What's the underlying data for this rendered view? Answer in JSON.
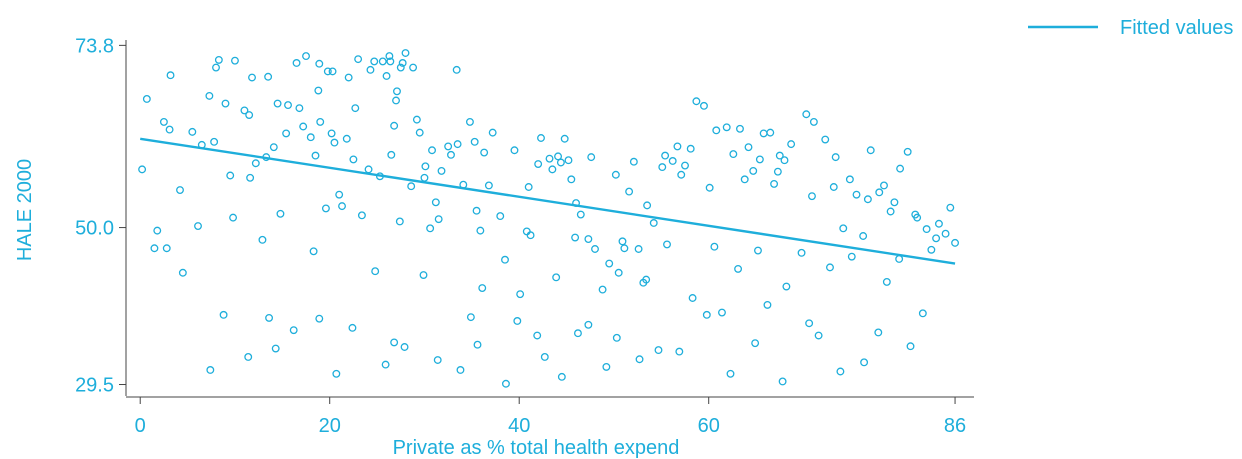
{
  "chart_data": {
    "type": "scatter",
    "xlabel": "Private as % total health expend",
    "ylabel": "HALE 2000",
    "xlim": [
      -1.5,
      88
    ],
    "ylim": [
      28,
      74.5
    ],
    "x_ticks": [
      {
        "value": 0,
        "label": "0"
      },
      {
        "value": 20,
        "label": "20"
      },
      {
        "value": 40,
        "label": "40"
      },
      {
        "value": 60,
        "label": "60"
      },
      {
        "value": 86,
        "label": "86"
      }
    ],
    "y_ticks": [
      {
        "value": 73.8,
        "label": "73.8"
      },
      {
        "value": 50.0,
        "label": "50.0"
      },
      {
        "value": 29.5,
        "label": "29.5"
      }
    ],
    "grid": false,
    "legend_position": "top-right",
    "colors": {
      "accent": "#1eaedb"
    },
    "series": [
      {
        "kind": "scatter",
        "points": [
          [
            0.2,
            57.6
          ],
          [
            0.7,
            66.8
          ],
          [
            1.8,
            49.6
          ],
          [
            2.8,
            47.3
          ],
          [
            3.2,
            69.9
          ],
          [
            3.1,
            62.8
          ],
          [
            7.3,
            67.2
          ],
          [
            7.8,
            61.2
          ],
          [
            8,
            70.9
          ],
          [
            8.3,
            71.9
          ],
          [
            9,
            66.2
          ],
          [
            9.5,
            56.8
          ],
          [
            10,
            71.8
          ],
          [
            11,
            65.3
          ],
          [
            11.5,
            64.7
          ],
          [
            11.6,
            56.5
          ],
          [
            11.8,
            69.6
          ],
          [
            13.3,
            59.2
          ],
          [
            13.5,
            69.7
          ],
          [
            14.5,
            66.2
          ],
          [
            15.4,
            62.3
          ],
          [
            15.6,
            66
          ],
          [
            16.5,
            71.5
          ],
          [
            16.8,
            65.6
          ],
          [
            17.5,
            72.4
          ],
          [
            18,
            61.8
          ],
          [
            18.5,
            59.4
          ],
          [
            18.8,
            67.9
          ],
          [
            18.9,
            71.4
          ],
          [
            19,
            63.8
          ],
          [
            19.8,
            70.4
          ],
          [
            20.2,
            62.3
          ],
          [
            20.3,
            70.4
          ],
          [
            20.5,
            61.1
          ],
          [
            21,
            54.3
          ],
          [
            21.3,
            52.8
          ],
          [
            21.8,
            61.6
          ],
          [
            22,
            69.6
          ],
          [
            22.7,
            65.6
          ],
          [
            23,
            72
          ],
          [
            24.1,
            57.6
          ],
          [
            24.3,
            70.6
          ],
          [
            24.7,
            71.7
          ],
          [
            25.6,
            71.7
          ],
          [
            26,
            69.8
          ],
          [
            26.3,
            72.4
          ],
          [
            26.4,
            71.7
          ],
          [
            26.5,
            59.5
          ],
          [
            26.8,
            63.3
          ],
          [
            27,
            66.6
          ],
          [
            27.1,
            67.8
          ],
          [
            27.5,
            70.9
          ],
          [
            27.7,
            71.5
          ],
          [
            28,
            72.8
          ],
          [
            28.8,
            70.9
          ],
          [
            29.2,
            64.1
          ],
          [
            29.5,
            62.4
          ],
          [
            30,
            56.5
          ],
          [
            30.1,
            58
          ],
          [
            30.8,
            60.1
          ],
          [
            31.2,
            53.3
          ],
          [
            31.5,
            51.1
          ],
          [
            32.5,
            60.6
          ],
          [
            32.8,
            59.5
          ],
          [
            33.4,
            70.6
          ],
          [
            33.5,
            60.9
          ],
          [
            34.8,
            63.8
          ],
          [
            35.3,
            61.2
          ],
          [
            35.5,
            52.2
          ],
          [
            36.3,
            59.8
          ],
          [
            36.8,
            55.5
          ],
          [
            38,
            51.5
          ],
          [
            38.5,
            45.8
          ],
          [
            40.8,
            49.5
          ],
          [
            41,
            55.3
          ],
          [
            42,
            58.3
          ],
          [
            42.3,
            61.7
          ],
          [
            43.2,
            59
          ],
          [
            44.1,
            59.3
          ],
          [
            44.4,
            58.5
          ],
          [
            44.8,
            61.6
          ],
          [
            45.2,
            58.8
          ],
          [
            45.5,
            56.3
          ],
          [
            46,
            53.2
          ],
          [
            46.5,
            51.7
          ],
          [
            47.3,
            48.5
          ],
          [
            48,
            47.2
          ],
          [
            49.5,
            45.3
          ],
          [
            50.5,
            44.1
          ],
          [
            51.1,
            47.3
          ],
          [
            51.6,
            54.7
          ],
          [
            52.6,
            47.2
          ],
          [
            53.4,
            43.2
          ],
          [
            53.5,
            52.9
          ],
          [
            54.2,
            50.6
          ],
          [
            55.4,
            59.4
          ],
          [
            56.2,
            58.7
          ],
          [
            56.7,
            60.6
          ],
          [
            57.5,
            58.1
          ],
          [
            58.1,
            60.3
          ],
          [
            58.7,
            66.5
          ],
          [
            59.5,
            65.9
          ],
          [
            60.8,
            62.7
          ],
          [
            61.9,
            63.1
          ],
          [
            62.6,
            59.6
          ],
          [
            63.3,
            62.9
          ],
          [
            64.2,
            60.5
          ],
          [
            64.7,
            57.4
          ],
          [
            65.4,
            58.9
          ],
          [
            65.8,
            62.3
          ],
          [
            66.5,
            62.4
          ],
          [
            67.3,
            57.3
          ],
          [
            67.5,
            59.4
          ],
          [
            68,
            58.8
          ],
          [
            68.7,
            60.9
          ],
          [
            70.3,
            64.8
          ],
          [
            71.1,
            63.8
          ],
          [
            72.3,
            61.5
          ],
          [
            73.4,
            59.2
          ],
          [
            74.2,
            49.9
          ],
          [
            74.9,
            56.3
          ],
          [
            75.6,
            54.3
          ],
          [
            76.3,
            48.9
          ],
          [
            77.1,
            60.1
          ],
          [
            78,
            54.6
          ],
          [
            78.5,
            55.5
          ],
          [
            79.6,
            53.3
          ],
          [
            80.2,
            57.7
          ],
          [
            81,
            59.9
          ],
          [
            82,
            51.3
          ],
          [
            83,
            49.8
          ],
          [
            84,
            48.6
          ],
          [
            85,
            49.2
          ],
          [
            85.5,
            52.6
          ],
          [
            86,
            48.0
          ],
          [
            2.5,
            63.8
          ],
          [
            4.2,
            54.9
          ],
          [
            5.5,
            62.5
          ],
          [
            6.5,
            60.8
          ],
          [
            12.2,
            58.4
          ],
          [
            14.1,
            60.5
          ],
          [
            17.2,
            63.2
          ],
          [
            22.5,
            58.9
          ],
          [
            25.3,
            56.7
          ],
          [
            28.6,
            55.4
          ],
          [
            31.8,
            57.4
          ],
          [
            34.1,
            55.6
          ],
          [
            37.2,
            62.4
          ],
          [
            39.5,
            60.1
          ],
          [
            43.5,
            57.6
          ],
          [
            47.6,
            59.2
          ],
          [
            50.2,
            56.9
          ],
          [
            52.1,
            58.6
          ],
          [
            55.1,
            57.9
          ],
          [
            57.1,
            56.9
          ],
          [
            60.1,
            55.2
          ],
          [
            63.8,
            56.3
          ],
          [
            66.9,
            55.7
          ],
          [
            70.9,
            54.1
          ],
          [
            73.2,
            55.3
          ],
          [
            76.8,
            53.7
          ],
          [
            79.2,
            52.1
          ],
          [
            81.8,
            51.7
          ],
          [
            84.3,
            50.5
          ],
          [
            9.8,
            51.3
          ],
          [
            14.8,
            51.8
          ],
          [
            19.6,
            52.5
          ],
          [
            23.4,
            51.6
          ],
          [
            27.4,
            50.8
          ],
          [
            30.6,
            49.9
          ],
          [
            35.9,
            49.6
          ],
          [
            41.2,
            49.0
          ],
          [
            45.9,
            48.7
          ],
          [
            50.9,
            48.2
          ],
          [
            55.6,
            47.8
          ],
          [
            60.6,
            47.5
          ],
          [
            65.2,
            47.0
          ],
          [
            69.8,
            46.7
          ],
          [
            75.1,
            46.2
          ],
          [
            80.1,
            45.9
          ],
          [
            1.5,
            47.3
          ],
          [
            6.1,
            50.2
          ],
          [
            12.9,
            48.4
          ],
          [
            18.3,
            46.9
          ],
          [
            24.8,
            44.3
          ],
          [
            29.9,
            43.8
          ],
          [
            36.1,
            42.1
          ],
          [
            40.1,
            41.3
          ],
          [
            43.9,
            43.5
          ],
          [
            48.8,
            41.9
          ],
          [
            53.1,
            42.8
          ],
          [
            58.3,
            40.8
          ],
          [
            63.1,
            44.6
          ],
          [
            68.2,
            42.3
          ],
          [
            72.8,
            44.8
          ],
          [
            78.8,
            42.9
          ],
          [
            83.5,
            47.1
          ],
          [
            4.5,
            44.1
          ],
          [
            8.8,
            38.6
          ],
          [
            14.3,
            34.2
          ],
          [
            18.9,
            38.1
          ],
          [
            22.4,
            36.9
          ],
          [
            26.8,
            35.0
          ],
          [
            31.4,
            32.7
          ],
          [
            35.6,
            34.7
          ],
          [
            39.8,
            37.8
          ],
          [
            42.7,
            33.1
          ],
          [
            46.2,
            36.2
          ],
          [
            50.3,
            35.6
          ],
          [
            54.7,
            34.0
          ],
          [
            59.8,
            38.6
          ],
          [
            64.9,
            34.9
          ],
          [
            70.6,
            37.5
          ],
          [
            76.4,
            32.4
          ],
          [
            81.3,
            34.5
          ],
          [
            11.4,
            33.1
          ],
          [
            16.2,
            36.6
          ],
          [
            20.7,
            30.9
          ],
          [
            25.9,
            32.1
          ],
          [
            33.8,
            31.4
          ],
          [
            38.6,
            29.6
          ],
          [
            44.5,
            30.5
          ],
          [
            49.2,
            31.8
          ],
          [
            56.9,
            33.8
          ],
          [
            62.3,
            30.9
          ],
          [
            67.8,
            29.9
          ],
          [
            73.9,
            31.2
          ],
          [
            7.4,
            31.4
          ],
          [
            13.6,
            38.2
          ],
          [
            27.9,
            34.4
          ],
          [
            34.9,
            38.3
          ],
          [
            41.9,
            35.9
          ],
          [
            47.3,
            37.3
          ],
          [
            52.7,
            32.8
          ],
          [
            61.4,
            38.9
          ],
          [
            66.2,
            39.9
          ],
          [
            71.6,
            35.9
          ],
          [
            77.9,
            36.3
          ],
          [
            82.6,
            38.8
          ]
        ]
      },
      {
        "kind": "line",
        "name": "Fitted values",
        "points": [
          [
            0,
            61.6
          ],
          [
            86,
            45.3
          ]
        ]
      }
    ]
  }
}
